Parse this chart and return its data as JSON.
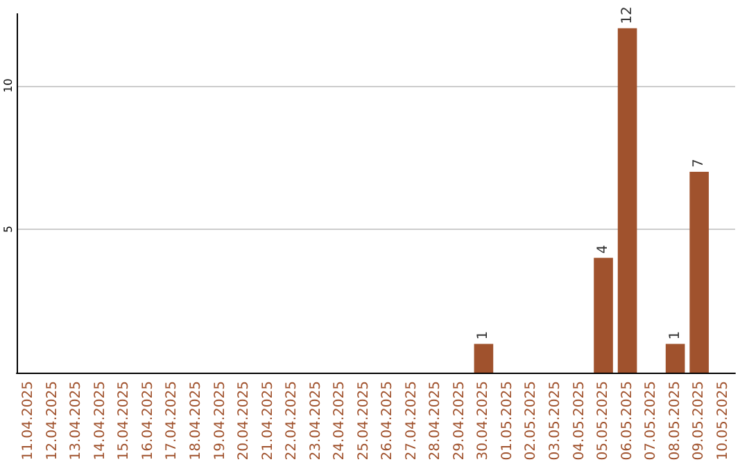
{
  "chart_data": {
    "type": "bar",
    "categories": [
      "11.04.2025",
      "12.04.2025",
      "13.04.2025",
      "14.04.2025",
      "15.04.2025",
      "16.04.2025",
      "17.04.2025",
      "18.04.2025",
      "19.04.2025",
      "20.04.2025",
      "21.04.2025",
      "22.04.2025",
      "23.04.2025",
      "24.04.2025",
      "25.04.2025",
      "26.04.2025",
      "27.04.2025",
      "28.04.2025",
      "29.04.2025",
      "30.04.2025",
      "01.05.2025",
      "02.05.2025",
      "03.05.2025",
      "04.05.2025",
      "05.05.2025",
      "06.05.2025",
      "07.05.2025",
      "08.05.2025",
      "09.05.2025",
      "10.05.2025"
    ],
    "values": [
      0,
      0,
      0,
      0,
      0,
      0,
      0,
      0,
      0,
      0,
      0,
      0,
      0,
      0,
      0,
      0,
      0,
      0,
      0,
      1,
      0,
      0,
      0,
      0,
      4,
      12,
      0,
      1,
      7,
      0
    ],
    "value_labels": [
      null,
      null,
      null,
      null,
      null,
      null,
      null,
      null,
      null,
      null,
      null,
      null,
      null,
      null,
      null,
      null,
      null,
      null,
      null,
      "1",
      null,
      null,
      null,
      null,
      "4",
      "12",
      null,
      "1",
      "7",
      null
    ],
    "color": "#a0522d",
    "ylim": [
      0,
      12.5
    ],
    "yticks": [
      5,
      10
    ],
    "grid": "y"
  }
}
